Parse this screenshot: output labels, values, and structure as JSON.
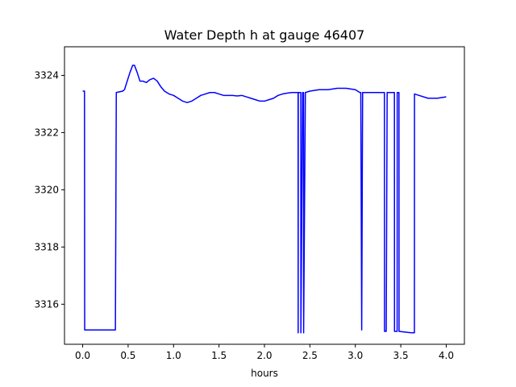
{
  "chart_data": {
    "type": "line",
    "title": "Water Depth h at gauge 46407",
    "xlabel": "hours",
    "ylabel": "",
    "xlim": [
      -0.2,
      4.2
    ],
    "ylim": [
      3314.6,
      3325.0
    ],
    "xticks": [
      0.0,
      0.5,
      1.0,
      1.5,
      2.0,
      2.5,
      3.0,
      3.5,
      4.0
    ],
    "xtick_labels": [
      "0.0",
      "0.5",
      "1.0",
      "1.5",
      "2.0",
      "2.5",
      "3.0",
      "3.5",
      "4.0"
    ],
    "yticks": [
      3316,
      3318,
      3320,
      3322,
      3324
    ],
    "ytick_labels": [
      "3316",
      "3318",
      "3320",
      "3322",
      "3324"
    ],
    "grid": false,
    "color": "#0000ff",
    "series": [
      {
        "x": [
          0.0,
          0.02,
          0.022,
          0.1,
          0.2,
          0.36,
          0.37,
          0.44,
          0.46,
          0.5,
          0.52,
          0.55,
          0.57,
          0.6,
          0.63,
          0.66,
          0.7,
          0.74,
          0.78,
          0.82,
          0.86,
          0.9,
          0.95,
          1.0,
          1.05,
          1.1,
          1.15,
          1.2,
          1.25,
          1.3,
          1.35,
          1.4,
          1.45,
          1.5,
          1.55,
          1.6,
          1.65,
          1.7,
          1.75,
          1.8,
          1.85,
          1.9,
          1.95,
          2.0,
          2.05,
          2.1,
          2.15,
          2.2,
          2.25,
          2.3,
          2.37,
          2.371,
          2.372,
          2.38,
          2.4,
          2.401,
          2.42,
          2.43,
          2.431,
          2.45,
          2.5,
          2.6,
          2.7,
          2.8,
          2.9,
          3.0,
          3.05,
          3.06,
          3.07,
          3.08,
          3.1,
          3.2,
          3.3,
          3.32,
          3.321,
          3.34,
          3.35,
          3.351,
          3.43,
          3.431,
          3.46,
          3.461,
          3.48,
          3.481,
          3.62,
          3.65,
          3.651,
          3.7,
          3.8,
          3.9,
          4.0
        ],
        "y": [
          3323.45,
          3323.45,
          3315.1,
          3315.1,
          3315.1,
          3315.1,
          3323.4,
          3323.45,
          3323.5,
          3323.9,
          3324.1,
          3324.35,
          3324.35,
          3324.1,
          3323.8,
          3323.8,
          3323.75,
          3323.85,
          3323.9,
          3323.8,
          3323.6,
          3323.45,
          3323.35,
          3323.3,
          3323.2,
          3323.1,
          3323.05,
          3323.1,
          3323.2,
          3323.3,
          3323.35,
          3323.4,
          3323.4,
          3323.35,
          3323.3,
          3323.3,
          3323.3,
          3323.28,
          3323.3,
          3323.25,
          3323.2,
          3323.15,
          3323.1,
          3323.1,
          3323.15,
          3323.2,
          3323.3,
          3323.35,
          3323.38,
          3323.4,
          3323.4,
          3315.0,
          3323.4,
          3323.4,
          3323.4,
          3315.0,
          3323.4,
          3323.4,
          3315.0,
          3323.4,
          3323.45,
          3323.5,
          3323.5,
          3323.55,
          3323.55,
          3323.5,
          3323.4,
          3323.4,
          3315.1,
          3323.4,
          3323.4,
          3323.4,
          3323.4,
          3323.4,
          3315.05,
          3315.05,
          3323.4,
          3323.4,
          3323.4,
          3315.05,
          3315.05,
          3323.4,
          3323.4,
          3315.05,
          3315.0,
          3315.0,
          3323.35,
          3323.3,
          3323.2,
          3323.2,
          3323.25
        ]
      }
    ]
  }
}
